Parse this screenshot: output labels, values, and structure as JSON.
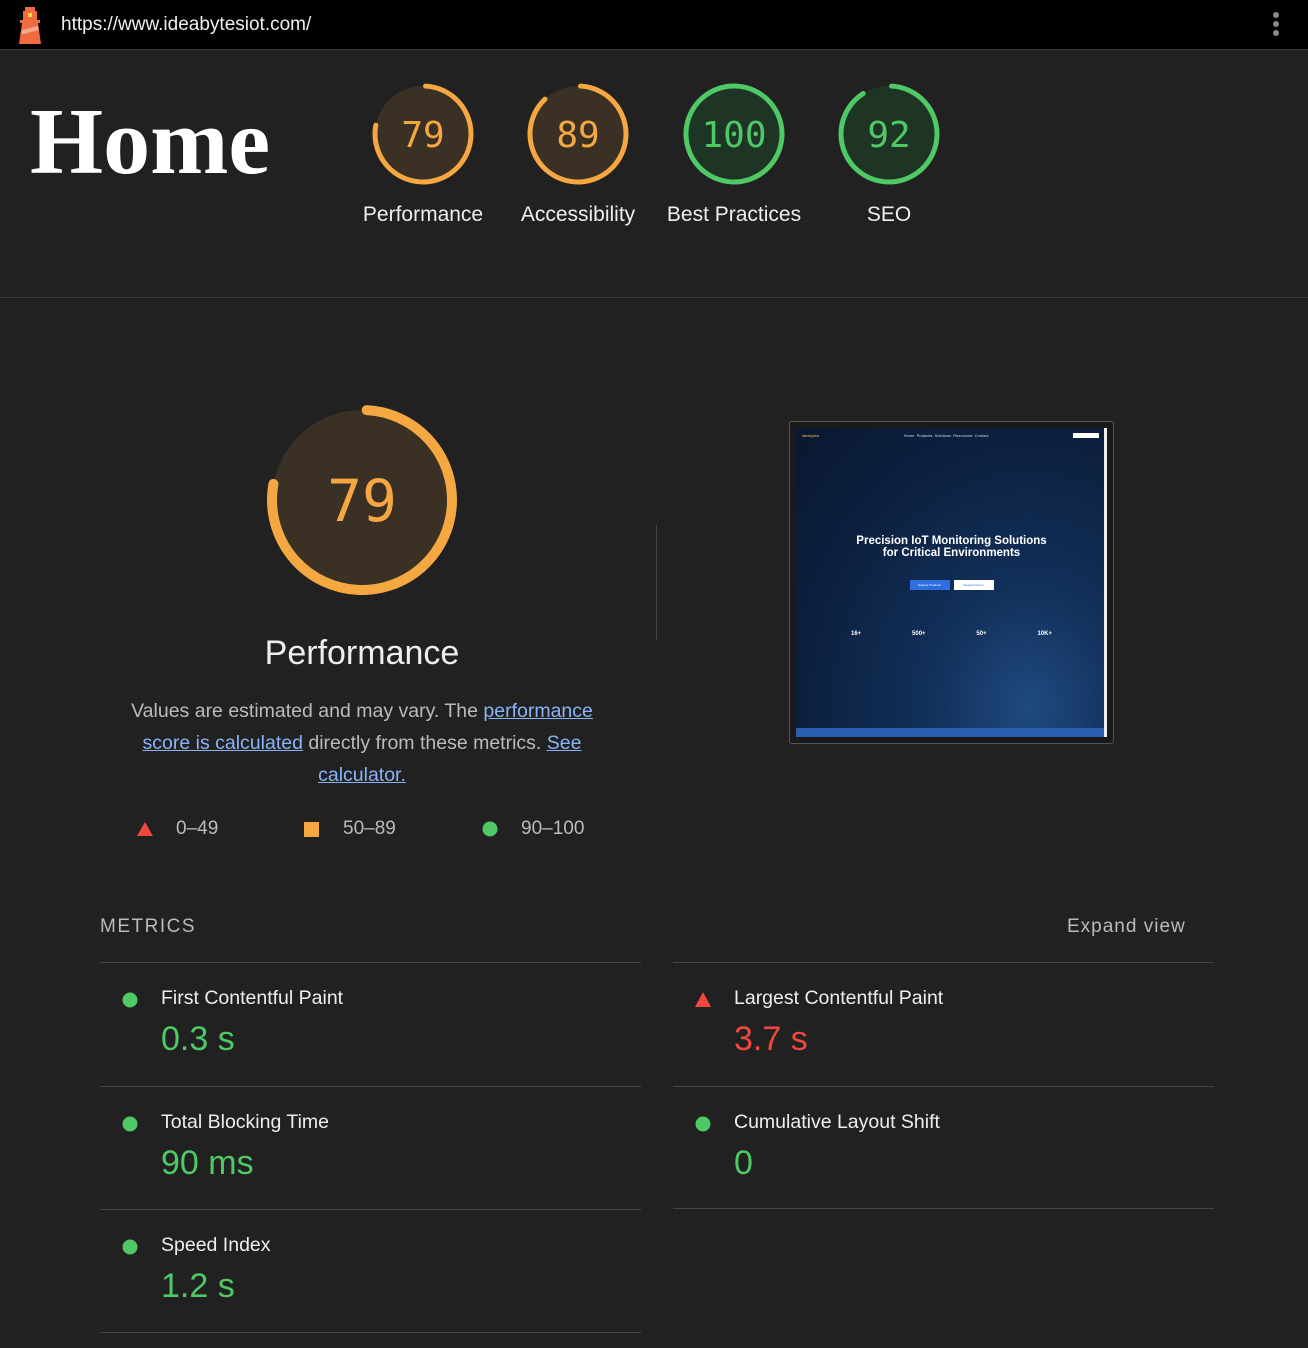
{
  "topbar": {
    "url": "https://www.ideabytesiot.com/",
    "logo": "lighthouse-icon",
    "menu": "kebab-menu-icon"
  },
  "page_title": "Home",
  "colors": {
    "fail": "#f0483e",
    "average": "#f5a742",
    "pass": "#4fc866",
    "background": "#212121"
  },
  "gauges": [
    {
      "score": 79,
      "label": "Performance",
      "rating": "average"
    },
    {
      "score": 89,
      "label": "Accessibility",
      "rating": "average"
    },
    {
      "score": 100,
      "label": "Best Practices",
      "rating": "pass"
    },
    {
      "score": 92,
      "label": "SEO",
      "rating": "pass"
    }
  ],
  "performance": {
    "score": 79,
    "title": "Performance",
    "desc_1": "Values are estimated and may vary. The ",
    "link_1": "performance score is calculated",
    "desc_2": " directly from these metrics. ",
    "link_2": "See calculator.",
    "legend": [
      {
        "icon": "triangle",
        "range": "0–49"
      },
      {
        "icon": "square",
        "range": "50–89"
      },
      {
        "icon": "circle",
        "range": "90–100"
      }
    ]
  },
  "screenshot": {
    "nav": [
      "Home",
      "Products",
      "Solutions",
      "Resources",
      "Contact"
    ],
    "headline_1": "Precision IoT Monitoring Solutions",
    "headline_2": "for Critical Environments",
    "buttons": [
      "Explore Products",
      "Request Demo"
    ],
    "stats": [
      "16+",
      "500+",
      "50+",
      "10K+"
    ]
  },
  "metrics": {
    "heading": "METRICS",
    "expand": "Expand view",
    "items": [
      {
        "name": "First Contentful Paint",
        "value": "0.3 s",
        "rating": "pass"
      },
      {
        "name": "Largest Contentful Paint",
        "value": "3.7 s",
        "rating": "fail"
      },
      {
        "name": "Total Blocking Time",
        "value": "90 ms",
        "rating": "pass"
      },
      {
        "name": "Cumulative Layout Shift",
        "value": "0",
        "rating": "pass"
      },
      {
        "name": "Speed Index",
        "value": "1.2 s",
        "rating": "pass"
      }
    ]
  }
}
